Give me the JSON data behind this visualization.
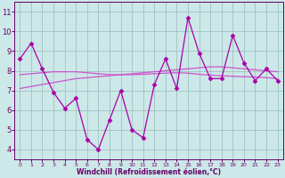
{
  "x": [
    0,
    1,
    2,
    3,
    4,
    5,
    6,
    7,
    8,
    9,
    10,
    11,
    12,
    13,
    14,
    15,
    16,
    17,
    18,
    19,
    20,
    21,
    22,
    23
  ],
  "y_main": [
    8.6,
    9.4,
    8.1,
    6.9,
    6.1,
    6.6,
    4.5,
    4.0,
    5.5,
    7.0,
    5.0,
    4.6,
    7.3,
    8.6,
    7.1,
    10.7,
    8.9,
    7.6,
    7.6,
    9.8,
    8.4,
    7.5,
    8.1,
    7.5
  ],
  "y_trend1": [
    7.1,
    7.2,
    7.3,
    7.4,
    7.5,
    7.6,
    7.65,
    7.7,
    7.75,
    7.8,
    7.85,
    7.9,
    7.95,
    8.0,
    8.05,
    8.1,
    8.15,
    8.2,
    8.2,
    8.15,
    8.1,
    8.05,
    8.0,
    7.95
  ],
  "y_trend2": [
    7.8,
    7.85,
    7.9,
    7.95,
    7.95,
    7.95,
    7.9,
    7.85,
    7.8,
    7.8,
    7.8,
    7.82,
    7.85,
    7.88,
    7.9,
    7.88,
    7.82,
    7.78,
    7.75,
    7.72,
    7.7,
    7.68,
    7.65,
    7.6
  ],
  "line_color": "#aa00aa",
  "trend_color1": "#cc55cc",
  "trend_color2": "#cc55cc",
  "bg_color": "#cce8e8",
  "grid_color": "#99bbbb",
  "text_color": "#660066",
  "axis_color": "#660066",
  "xlabel": "Windchill (Refroidissement éolien,°C)",
  "ylim": [
    3.5,
    11.5
  ],
  "xlim": [
    -0.5,
    23.5
  ],
  "yticks": [
    4,
    5,
    6,
    7,
    8,
    9,
    10,
    11
  ],
  "xticks": [
    0,
    1,
    2,
    3,
    4,
    5,
    6,
    7,
    8,
    9,
    10,
    11,
    12,
    13,
    14,
    15,
    16,
    17,
    18,
    19,
    20,
    21,
    22,
    23
  ]
}
